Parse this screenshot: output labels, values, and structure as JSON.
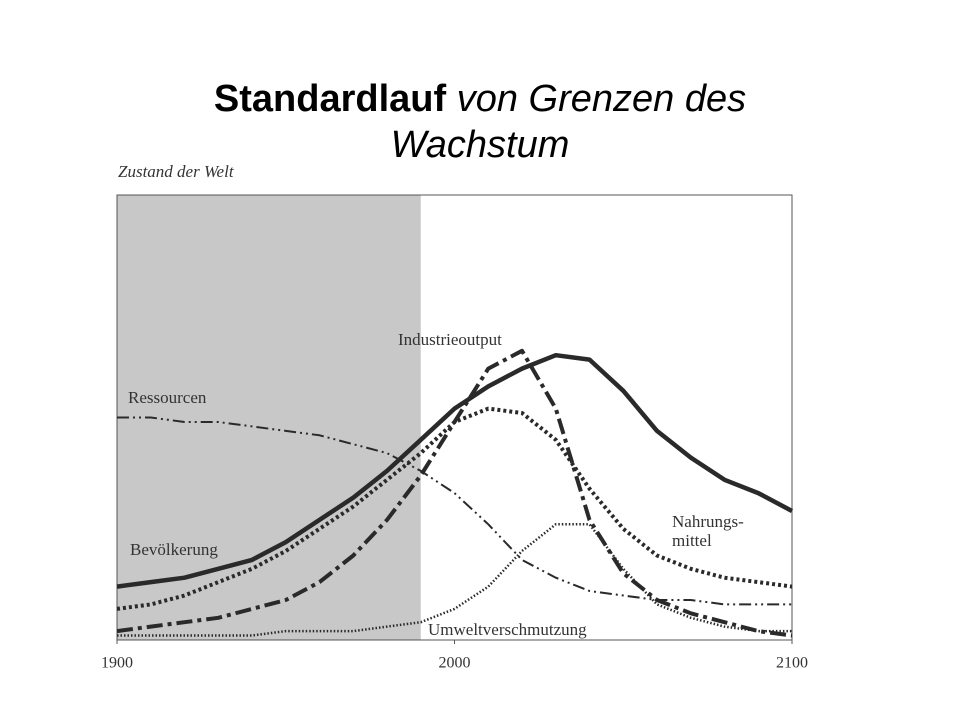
{
  "chart_data": {
    "type": "line",
    "title_parts": [
      "Standardlauf",
      "von Grenzen des Wachstum"
    ],
    "y_label": "Zustand der Welt",
    "x": [
      1900,
      1910,
      1920,
      1930,
      1940,
      1950,
      1960,
      1970,
      1980,
      1990,
      2000,
      2010,
      2020,
      2030,
      2040,
      2050,
      2060,
      2070,
      2080,
      2090,
      2100
    ],
    "xlim": [
      1900,
      2100
    ],
    "xticks": [
      1900,
      2000,
      2100
    ],
    "ylim": [
      0,
      100
    ],
    "shaded_range": [
      1900,
      1990
    ],
    "series": [
      {
        "name": "Bevölkerung",
        "color": "#2a2a2a",
        "style": "solid",
        "values": [
          12,
          13,
          14,
          16,
          18,
          22,
          27,
          32,
          38,
          45,
          52,
          57,
          61,
          64,
          63,
          56,
          47,
          41,
          36,
          33,
          29
        ]
      },
      {
        "name": "Nahrungs-\nmittel",
        "color": "#2a2a2a",
        "style": "dotted",
        "values": [
          7,
          8,
          10,
          13,
          16,
          20,
          25,
          30,
          36,
          42,
          49,
          52,
          51,
          45,
          34,
          25,
          19,
          16,
          14,
          13,
          12
        ]
      },
      {
        "name": "Industrieoutput",
        "color": "#2a2a2a",
        "style": "dash-dot",
        "values": [
          2,
          3,
          4,
          5,
          7,
          9,
          13,
          19,
          27,
          37,
          49,
          61,
          65,
          52,
          27,
          15,
          9,
          6,
          4,
          2,
          1
        ]
      },
      {
        "name": "Ressourcen",
        "color": "#2a2a2a",
        "style": "dash-dot-dot",
        "values": [
          50,
          50,
          49,
          49,
          48,
          47,
          46,
          44,
          42,
          38,
          33,
          26,
          18,
          14,
          11,
          10,
          9,
          9,
          8,
          8,
          8
        ]
      },
      {
        "name": "Umweltverschmutzung",
        "color": "#2a2a2a",
        "style": "fine-dotted",
        "values": [
          1,
          1,
          1,
          1,
          1,
          2,
          2,
          2,
          3,
          4,
          7,
          12,
          20,
          26,
          26,
          16,
          8,
          5,
          3,
          2,
          2
        ]
      }
    ]
  }
}
